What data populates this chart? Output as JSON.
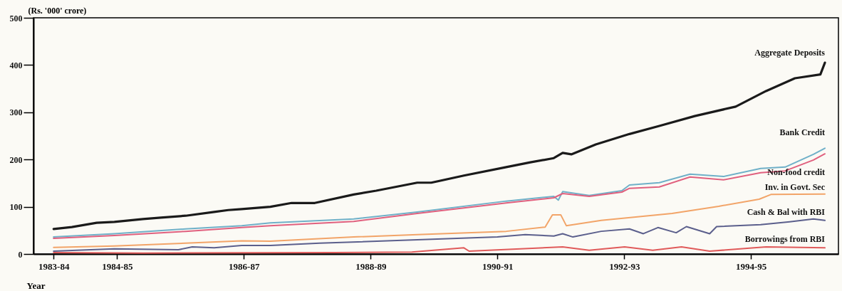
{
  "chart_data": {
    "type": "line",
    "xlabel": "Year",
    "ylabel": "(Rs. '000' crore)",
    "xlim": [
      "1982-12-06",
      "1995-08-18"
    ],
    "ylim": [
      0,
      500
    ],
    "yticks": [
      0,
      100,
      200,
      300,
      400,
      500
    ],
    "xticks": [
      {
        "value": "1983-04-01",
        "label": "1983-84"
      },
      {
        "value": "1984-04-01",
        "label": "1984-85"
      },
      {
        "value": "1986-04-01",
        "label": "1986-87"
      },
      {
        "value": "1988-04-01",
        "label": "1988-89"
      },
      {
        "value": "1990-04-01",
        "label": "1990-91"
      },
      {
        "value": "1992-04-01",
        "label": "1992-93"
      },
      {
        "value": "1994-04-01",
        "label": "1994-95"
      }
    ],
    "grid": false,
    "marker": "none",
    "line_style": "solid",
    "series": [
      {
        "name": "Aggregate Deposits",
        "color": "#1a1a1a",
        "x": [
          "1983-04-01",
          "1983-07-15",
          "1983-12-05",
          "1984-03-16",
          "1984-08-28",
          "1984-12-08",
          "1985-05-01",
          "1985-10-12",
          "1986-01-01",
          "1986-03-20",
          "1986-09-01",
          "1987-01-01",
          "1987-05-15",
          "1987-12-25",
          "1988-05-03",
          "1988-12-25",
          "1989-03-16",
          "1989-09-20",
          "1990-05-22",
          "1990-10-08",
          "1991-02-20",
          "1991-04-12",
          "1991-06-01",
          "1991-10-20",
          "1992-05-01",
          "1992-10-20",
          "1993-05-12",
          "1994-01-03",
          "1994-06-27",
          "1994-12-10",
          "1995-05-06",
          "1995-06-01"
        ],
        "values": [
          53,
          57,
          66,
          68,
          74,
          77,
          81,
          89,
          93,
          95,
          100,
          108,
          108,
          126,
          134,
          151,
          151,
          166,
          184,
          194,
          203,
          214,
          211,
          232,
          254,
          271,
          292,
          312,
          345,
          372,
          380,
          405
        ]
      },
      {
        "name": "Bank Credit",
        "color": "#6fb0c8",
        "x": [
          "1983-04-01",
          "1984-03-16",
          "1985-05-01",
          "1986-03-20",
          "1986-09-01",
          "1987-12-25",
          "1988-12-25",
          "1990-05-22",
          "1991-02-20",
          "1991-03-18",
          "1991-04-12",
          "1991-09-12",
          "1992-03-18",
          "1992-05-01",
          "1992-10-20",
          "1993-04-15",
          "1993-10-25",
          "1994-05-27",
          "1994-10-15",
          "1995-03-27",
          "1995-06-01"
        ],
        "values": [
          36,
          43,
          53,
          60,
          66,
          74,
          89,
          112,
          122,
          114,
          132,
          124,
          134,
          146,
          151,
          169,
          164,
          181,
          184,
          211,
          224
        ]
      },
      {
        "name": "Non-food credit",
        "color": "#e0607e",
        "x": [
          "1983-04-01",
          "1984-03-16",
          "1985-05-01",
          "1986-03-20",
          "1986-09-01",
          "1987-12-25",
          "1988-12-25",
          "1990-05-22",
          "1991-02-20",
          "1991-04-12",
          "1991-09-12",
          "1992-03-18",
          "1992-05-01",
          "1992-10-20",
          "1993-04-15",
          "1993-10-25",
          "1994-05-27",
          "1994-10-15",
          "1995-03-27",
          "1995-06-01"
        ],
        "values": [
          33,
          39,
          48,
          56,
          60,
          69,
          86,
          108,
          119,
          128,
          122,
          131,
          139,
          142,
          163,
          157,
          172,
          176,
          199,
          212
        ]
      },
      {
        "name": "Inv. in Govt. Sec",
        "color": "#f2a468",
        "x": [
          "1983-04-01",
          "1984-03-16",
          "1985-05-01",
          "1986-03-20",
          "1986-09-01",
          "1987-12-25",
          "1988-12-25",
          "1990-05-22",
          "1991-01-01",
          "1991-02-12",
          "1991-04-01",
          "1991-05-03",
          "1991-11-20",
          "1993-01-01",
          "1993-09-27",
          "1994-05-18",
          "1994-07-25",
          "1995-06-01"
        ],
        "values": [
          14,
          17,
          23,
          28,
          27,
          36,
          41,
          48,
          57,
          83,
          83,
          60,
          71,
          86,
          101,
          116,
          126,
          127
        ]
      },
      {
        "name": "Cash & Bal with RBI",
        "color": "#5b5f8c",
        "x": [
          "1983-04-01",
          "1984-03-16",
          "1985-03-20",
          "1985-06-08",
          "1985-10-12",
          "1986-03-20",
          "1986-09-01",
          "1987-06-12",
          "1988-12-25",
          "1990-04-01",
          "1990-09-08",
          "1991-02-20",
          "1991-04-12",
          "1991-06-10",
          "1991-11-20",
          "1992-05-01",
          "1992-07-20",
          "1992-10-12",
          "1993-01-25",
          "1993-03-25",
          "1993-08-06",
          "1993-09-15",
          "1994-05-27",
          "1994-11-10",
          "1995-03-27",
          "1995-06-01"
        ],
        "values": [
          6,
          11,
          9,
          15,
          13,
          18,
          18,
          23,
          30,
          36,
          41,
          38,
          43,
          36,
          48,
          53,
          43,
          56,
          45,
          58,
          43,
          58,
          62,
          68,
          74,
          71
        ]
      },
      {
        "name": "Borrowings from RBI",
        "color": "#e05a5a",
        "x": [
          "1983-04-01",
          "1984-08-28",
          "1987-09-01",
          "1988-11-25",
          "1989-09-20",
          "1989-10-20",
          "1991-04-12",
          "1991-09-12",
          "1992-04-03",
          "1992-09-12",
          "1993-02-25",
          "1993-08-06",
          "1994-06-27",
          "1995-06-01"
        ],
        "values": [
          3,
          2,
          3,
          4,
          13,
          6,
          15,
          8,
          15,
          8,
          15,
          6,
          15,
          13
        ]
      }
    ]
  }
}
